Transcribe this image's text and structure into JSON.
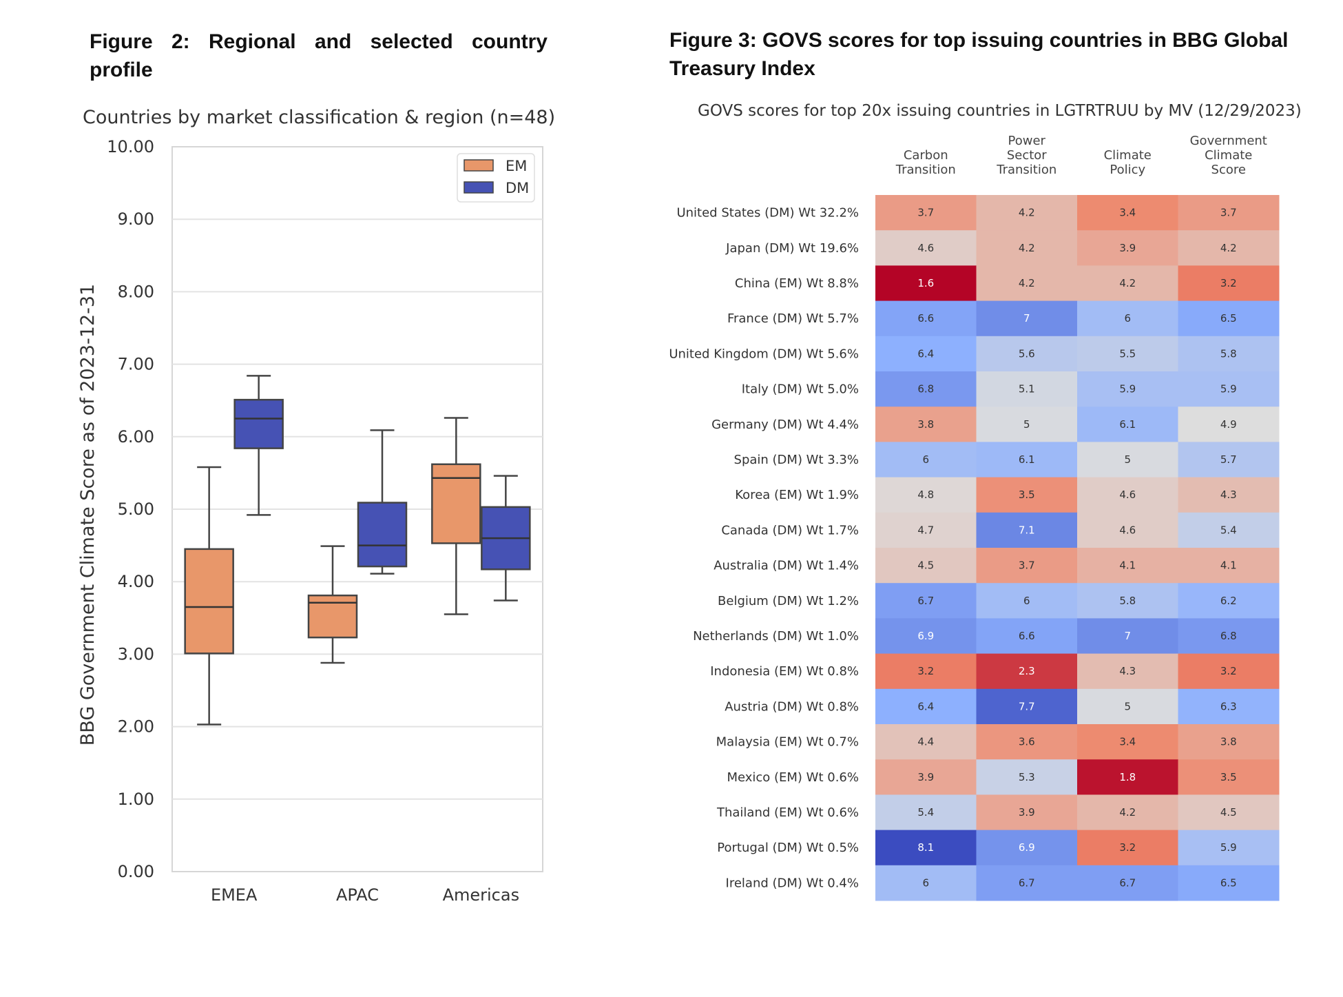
{
  "figure2": {
    "title": "Figure 2: Regional and selected country profile",
    "subtitle": "Countries by market classification & region (n=48)"
  },
  "figure3": {
    "title": "Figure 3: GOVS scores for top issuing countries in BBG Global Treasury Index",
    "subtitle": "GOVS scores for top 20x issuing countries in LGTRTRUU by MV (12/29/2023)"
  },
  "colors": {
    "EM": "#e8976a",
    "DM": "#4652b4"
  },
  "chart_data": [
    {
      "type": "box",
      "title": "Countries by market classification & region (n=48)",
      "ylabel": "BBG Government Climate Score as of 2023-12-31",
      "ylim": [
        0,
        10
      ],
      "yticks": [
        "0.00",
        "1.00",
        "2.00",
        "3.00",
        "4.00",
        "5.00",
        "6.00",
        "7.00",
        "8.00",
        "9.00",
        "10.00"
      ],
      "categories": [
        "EMEA",
        "APAC",
        "Americas"
      ],
      "legend": {
        "position": "top-right",
        "entries": [
          "EM",
          "DM"
        ]
      },
      "grid": true,
      "series": [
        {
          "name": "EM",
          "boxes": [
            {
              "category": "EMEA",
              "whisker_low": 2.03,
              "q1": 3.01,
              "median": 3.65,
              "q3": 4.45,
              "whisker_high": 5.58
            },
            {
              "category": "APAC",
              "whisker_low": 2.88,
              "q1": 3.23,
              "median": 3.71,
              "q3": 3.81,
              "whisker_high": 4.49
            },
            {
              "category": "Americas",
              "whisker_low": 3.55,
              "q1": 4.53,
              "median": 5.43,
              "q3": 5.62,
              "whisker_high": 6.26
            }
          ]
        },
        {
          "name": "DM",
          "boxes": [
            {
              "category": "EMEA",
              "whisker_low": 4.92,
              "q1": 5.84,
              "median": 6.25,
              "q3": 6.51,
              "whisker_high": 6.84
            },
            {
              "category": "APAC",
              "whisker_low": 4.11,
              "q1": 4.21,
              "median": 4.5,
              "q3": 5.09,
              "whisker_high": 6.09
            },
            {
              "category": "Americas",
              "whisker_low": 3.74,
              "q1": 4.17,
              "median": 4.6,
              "q3": 5.03,
              "whisker_high": 5.46
            }
          ]
        }
      ]
    },
    {
      "type": "heatmap",
      "title": "GOVS scores for top 20x issuing countries in LGTRTRUU by MV (12/29/2023)",
      "columns": [
        [
          "Carbon",
          "Transition"
        ],
        [
          "Power",
          "Sector",
          "Transition"
        ],
        [
          "Climate",
          "Policy"
        ],
        [
          "Government",
          "Climate",
          "Score"
        ]
      ],
      "rows": [
        "United States (DM) Wt 32.2%",
        "Japan (DM) Wt 19.6%",
        "China (EM) Wt 8.8%",
        "France (DM) Wt 5.7%",
        "United Kingdom (DM) Wt 5.6%",
        "Italy (DM) Wt 5.0%",
        "Germany (DM) Wt 4.4%",
        "Spain (DM) Wt 3.3%",
        "Korea (EM) Wt 1.9%",
        "Canada (DM) Wt 1.7%",
        "Australia (DM) Wt 1.4%",
        "Belgium (DM) Wt 1.2%",
        "Netherlands (DM) Wt 1.0%",
        "Indonesia (EM) Wt 0.8%",
        "Austria (DM) Wt 0.8%",
        "Malaysia (EM) Wt 0.7%",
        "Mexico (EM) Wt 0.6%",
        "Thailand (EM) Wt 0.6%",
        "Portugal (DM) Wt 0.5%",
        "Ireland (DM) Wt 0.4%"
      ],
      "values": [
        [
          "3.7",
          "4.2",
          "3.4",
          "3.7"
        ],
        [
          "4.6",
          "4.2",
          "3.9",
          "4.2"
        ],
        [
          "1.6",
          "4.2",
          "4.2",
          "3.2"
        ],
        [
          "6.6",
          "7",
          "6",
          "6.5"
        ],
        [
          "6.4",
          "5.6",
          "5.5",
          "5.8"
        ],
        [
          "6.8",
          "5.1",
          "5.9",
          "5.9"
        ],
        [
          "3.8",
          "5",
          "6.1",
          "4.9"
        ],
        [
          "6",
          "6.1",
          "5",
          "5.7"
        ],
        [
          "4.8",
          "3.5",
          "4.6",
          "4.3"
        ],
        [
          "4.7",
          "7.1",
          "4.6",
          "5.4"
        ],
        [
          "4.5",
          "3.7",
          "4.1",
          "4.1"
        ],
        [
          "6.7",
          "6",
          "5.8",
          "6.2"
        ],
        [
          "6.9",
          "6.6",
          "7",
          "6.8"
        ],
        [
          "3.2",
          "2.3",
          "4.3",
          "3.2"
        ],
        [
          "6.4",
          "7.7",
          "5",
          "6.3"
        ],
        [
          "4.4",
          "3.6",
          "3.4",
          "3.8"
        ],
        [
          "3.9",
          "5.3",
          "1.8",
          "3.5"
        ],
        [
          "5.4",
          "3.9",
          "4.2",
          "4.5"
        ],
        [
          "8.1",
          "6.9",
          "3.2",
          "5.9"
        ],
        [
          "6",
          "6.7",
          "6.7",
          "6.5"
        ]
      ],
      "colormap": "coolwarm_r"
    }
  ]
}
